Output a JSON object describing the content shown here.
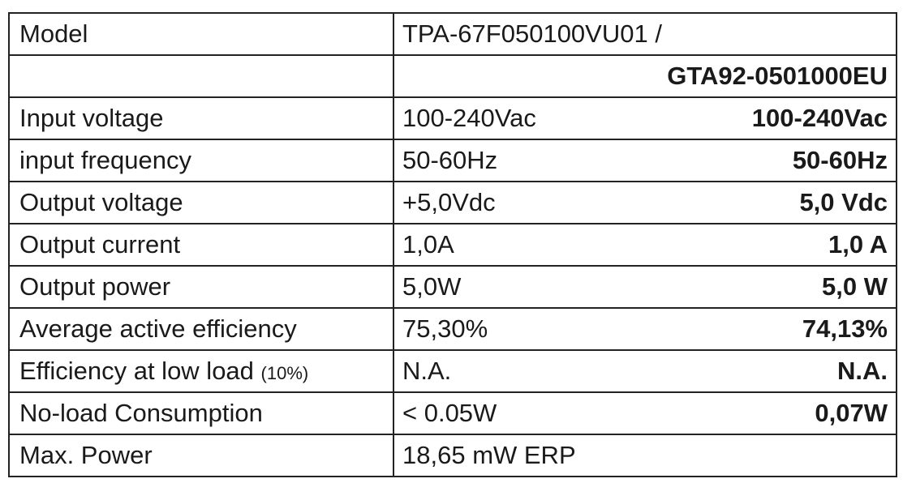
{
  "table": {
    "rows": [
      {
        "label": "Model",
        "value_a": "TPA-67F050100VU01 /"
      },
      {
        "value_b": "GTA92-0501000EU"
      },
      {
        "label": "Input voltage",
        "value_a": "100-240Vac",
        "value_b": "100-240Vac"
      },
      {
        "label": "input frequency",
        "value_a": "50-60Hz",
        "value_b": "50-60Hz"
      },
      {
        "label": "Output voltage",
        "value_a": "+5,0Vdc",
        "value_b": "5,0 Vdc"
      },
      {
        "label": "Output current",
        "value_a": "1,0A",
        "value_b": "1,0 A"
      },
      {
        "label": "Output power",
        "value_a": "5,0W",
        "value_b": "5,0 W"
      },
      {
        "label": "Average active efficiency",
        "value_a": "75,30%",
        "value_b": "74,13%"
      },
      {
        "label": "Efficiency at low load",
        "label_note": "(10%)",
        "value_a": "N.A.",
        "value_b": "N.A."
      },
      {
        "label": "No-load Consumption",
        "value_a": "< 0.05W",
        "value_b": "0,07W"
      },
      {
        "label": "Max. Power",
        "value_a": "18,65 mW ERP"
      }
    ]
  }
}
